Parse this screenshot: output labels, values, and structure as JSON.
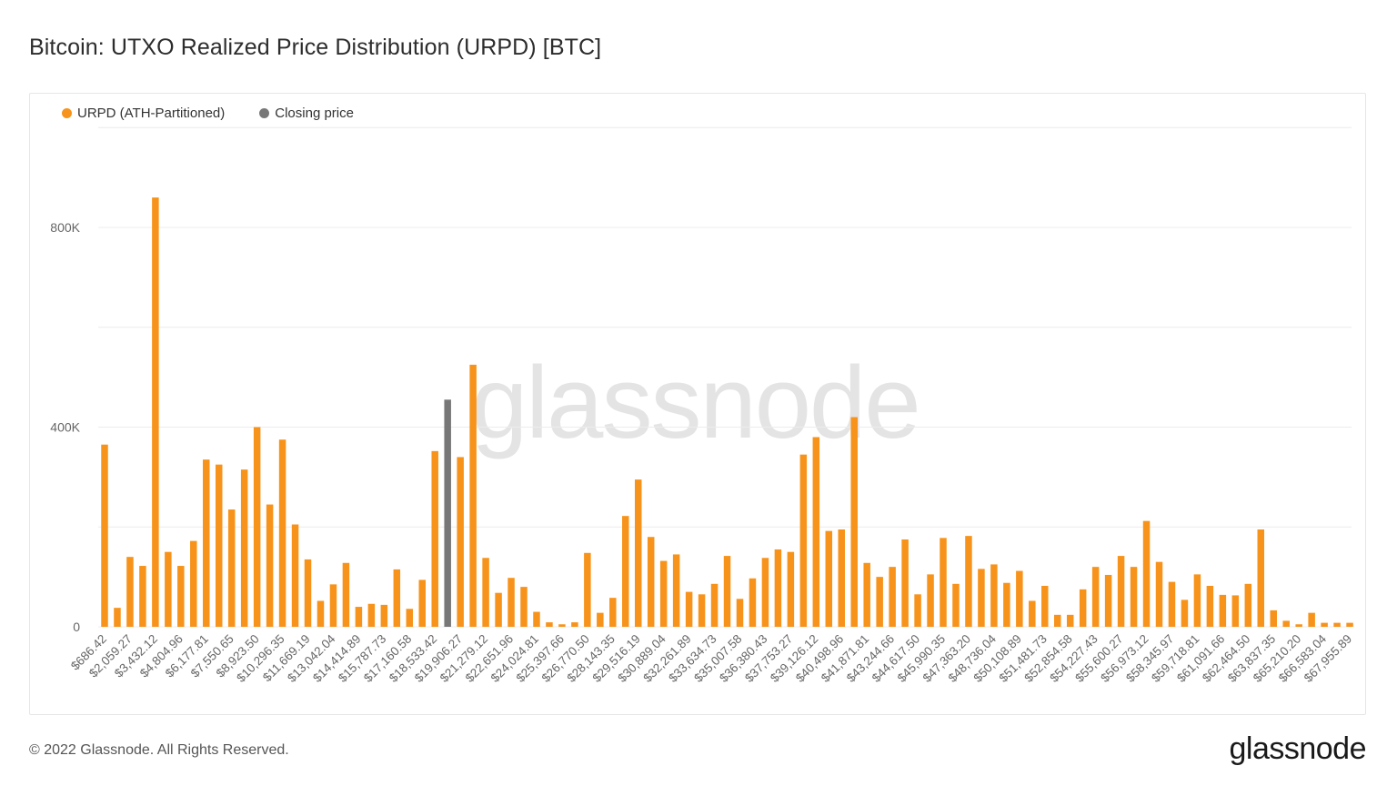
{
  "title": "Bitcoin: UTXO Realized Price Distribution (URPD) [BTC]",
  "legend": [
    {
      "label": "URPD (ATH-Partitioned)",
      "color": "#f7931a"
    },
    {
      "label": "Closing price",
      "color": "#777777"
    }
  ],
  "watermark": "glassnode",
  "footer": {
    "copyright": "© 2022 Glassnode. All Rights Reserved.",
    "logo": "glassnode"
  },
  "chart_data": {
    "type": "bar",
    "ylim": [
      0,
      950000
    ],
    "yticks": [
      {
        "value": 0,
        "label": "0"
      },
      {
        "value": 400000,
        "label": "400K"
      },
      {
        "value": 800000,
        "label": "800K"
      }
    ],
    "grid_values": [
      0,
      200000,
      400000,
      600000,
      800000,
      1000000
    ],
    "xtick_labels": [
      "$686.42",
      "$2,059.27",
      "$3,432.12",
      "$4,804.96",
      "$6,177.81",
      "$7,550.65",
      "$8,923.50",
      "$10,296.35",
      "$11,669.19",
      "$13,042.04",
      "$14,414.89",
      "$15,787.73",
      "$17,160.58",
      "$18,533.42",
      "$19,906.27",
      "$21,279.12",
      "$22,651.96",
      "$24,024.81",
      "$25,397.66",
      "$26,770.50",
      "$28,143.35",
      "$29,516.19",
      "$30,889.04",
      "$32,261.89",
      "$33,634.73",
      "$35,007.58",
      "$36,380.43",
      "$37,753.27",
      "$39,126.12",
      "$40,498.96",
      "$41,871.81",
      "$43,244.66",
      "$44,617.50",
      "$45,990.35",
      "$47,363.20",
      "$48,736.04",
      "$50,108.89",
      "$51,481.73",
      "$52,854.58",
      "$54,227.43",
      "$55,600.27",
      "$56,973.12",
      "$58,345.97",
      "$59,718.81",
      "$61,091.66",
      "$62,464.50",
      "$63,837.35",
      "$65,210.20",
      "$66,583.04",
      "$67,955.89"
    ],
    "values": [
      365000,
      38000,
      140000,
      122000,
      860000,
      150000,
      122000,
      172000,
      335000,
      325000,
      235000,
      315000,
      400000,
      245000,
      375000,
      205000,
      135000,
      52000,
      85000,
      128000,
      40000,
      46000,
      44000,
      115000,
      36000,
      94000,
      352000,
      455000,
      340000,
      525000,
      138000,
      68000,
      98000,
      80000,
      30000,
      9000,
      5000,
      9000,
      148000,
      28000,
      58000,
      222000,
      295000,
      180000,
      132000,
      145000,
      70000,
      65000,
      86000,
      142000,
      56000,
      97000,
      138000,
      155000,
      150000,
      345000,
      380000,
      192000,
      195000,
      420000,
      128000,
      100000,
      120000,
      175000,
      65000,
      105000,
      178000,
      86000,
      182000,
      116000,
      125000,
      88000,
      112000,
      52000,
      82000,
      24000,
      24000,
      75000,
      120000,
      104000,
      142000,
      120000,
      212000,
      130000,
      90000,
      54000,
      105000,
      82000,
      64000,
      63000,
      86000,
      195000,
      33000,
      12000,
      5000,
      28000,
      8000,
      8000,
      8000
    ],
    "closing_price_index": 27,
    "colors": {
      "urpd": "#f7931a",
      "closing": "#777777",
      "grid": "#ececec",
      "axis_text": "#666666"
    }
  }
}
